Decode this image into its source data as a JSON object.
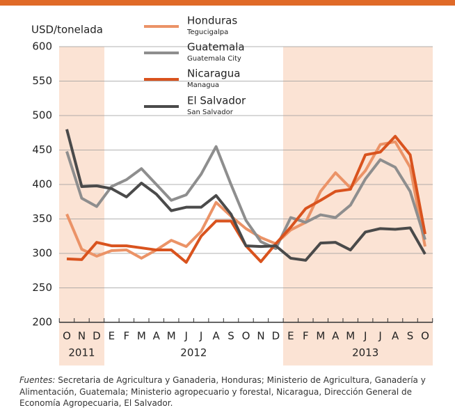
{
  "chart_data": {
    "type": "line",
    "y_label": "USD/tonelada",
    "categories": [
      "O",
      "N",
      "D",
      "E",
      "F",
      "M",
      "A",
      "M",
      "J",
      "J",
      "A",
      "S",
      "O",
      "N",
      "D",
      "E",
      "F",
      "M",
      "A",
      "M",
      "J",
      "J",
      "A",
      "S",
      "O"
    ],
    "year_labels": [
      "2011",
      "2012",
      "2013"
    ],
    "ylim": [
      200,
      600
    ],
    "yticks": [
      200,
      250,
      300,
      350,
      400,
      450,
      500,
      550,
      600
    ],
    "grid": true,
    "series": [
      {
        "name": "Honduras",
        "city": "Tegucigalpa",
        "color": "#eb9367",
        "values": [
          357,
          306,
          296,
          304,
          305,
          293,
          305,
          319,
          310,
          332,
          374,
          354,
          336,
          323,
          314,
          334,
          345,
          390,
          417,
          395,
          420,
          458,
          462,
          425,
          310
        ]
      },
      {
        "name": "Guatemala",
        "city": "Guatemala City",
        "color": "#8e8e8e",
        "values": [
          448,
          380,
          368,
          397,
          407,
          423,
          400,
          377,
          385,
          415,
          455,
          400,
          348,
          317,
          307,
          352,
          345,
          356,
          352,
          370,
          408,
          436,
          425,
          390,
          320
        ]
      },
      {
        "name": "Nicaragua",
        "city": "Managua",
        "color": "#d9531e",
        "values": [
          292,
          291,
          316,
          311,
          311,
          308,
          305,
          305,
          287,
          325,
          347,
          347,
          311,
          288,
          314,
          338,
          365,
          377,
          390,
          393,
          443,
          447,
          470,
          443,
          328
        ]
      },
      {
        "name": "El Salvador",
        "city": "San Salvador",
        "color": "#4a4a4a",
        "values": [
          480,
          397,
          398,
          394,
          382,
          402,
          386,
          362,
          367,
          367,
          384,
          357,
          311,
          310,
          311,
          293,
          290,
          315,
          316,
          305,
          331,
          336,
          335,
          337,
          299
        ]
      }
    ]
  },
  "source": {
    "label": "Fuentes:",
    "text": "Secretaria de Agricultura y Ganaderia, Honduras; Ministerio de Agricultura, Ganadería y Alimentación, Guatemala; Ministerio agropecuario y forestal, Nicaragua, Dirección General de Economía Agropecuaria, El Salvador."
  }
}
